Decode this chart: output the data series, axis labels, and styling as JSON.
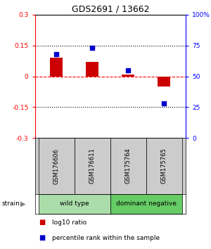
{
  "title": "GDS2691 / 13662",
  "samples": [
    "GSM176606",
    "GSM176611",
    "GSM175764",
    "GSM175765"
  ],
  "log10_ratio": [
    0.09,
    0.07,
    0.01,
    -0.05
  ],
  "percentile_rank": [
    68,
    73,
    55,
    28
  ],
  "ylim_left": [
    -0.3,
    0.3
  ],
  "ylim_right": [
    0,
    100
  ],
  "yticks_left": [
    -0.3,
    -0.15,
    0,
    0.15,
    0.3
  ],
  "ytick_labels_left": [
    "-0.3",
    "-0.15",
    "0",
    "0.15",
    "0.3"
  ],
  "yticks_right": [
    0,
    25,
    50,
    75,
    100
  ],
  "ytick_labels_right": [
    "0",
    "25",
    "50",
    "75",
    "100%"
  ],
  "hlines": [
    0.15,
    0.0,
    -0.15
  ],
  "hline_styles": [
    "dotted",
    "dashed",
    "dotted"
  ],
  "hline_colors": [
    "black",
    "red",
    "black"
  ],
  "groups": [
    {
      "label": "wild type",
      "samples": [
        0,
        1
      ],
      "color": "#aaddaa"
    },
    {
      "label": "dominant negative",
      "samples": [
        2,
        3
      ],
      "color": "#66cc66"
    }
  ],
  "bar_color": "#cc0000",
  "square_color": "#0000cc",
  "bar_width": 0.35,
  "legend_items": [
    {
      "color": "#cc0000",
      "label": "log10 ratio"
    },
    {
      "color": "#0000cc",
      "label": "percentile rank within the sample"
    }
  ],
  "strain_label": "strain",
  "sample_box_color": "#cccccc",
  "bg_color": "#ffffff"
}
